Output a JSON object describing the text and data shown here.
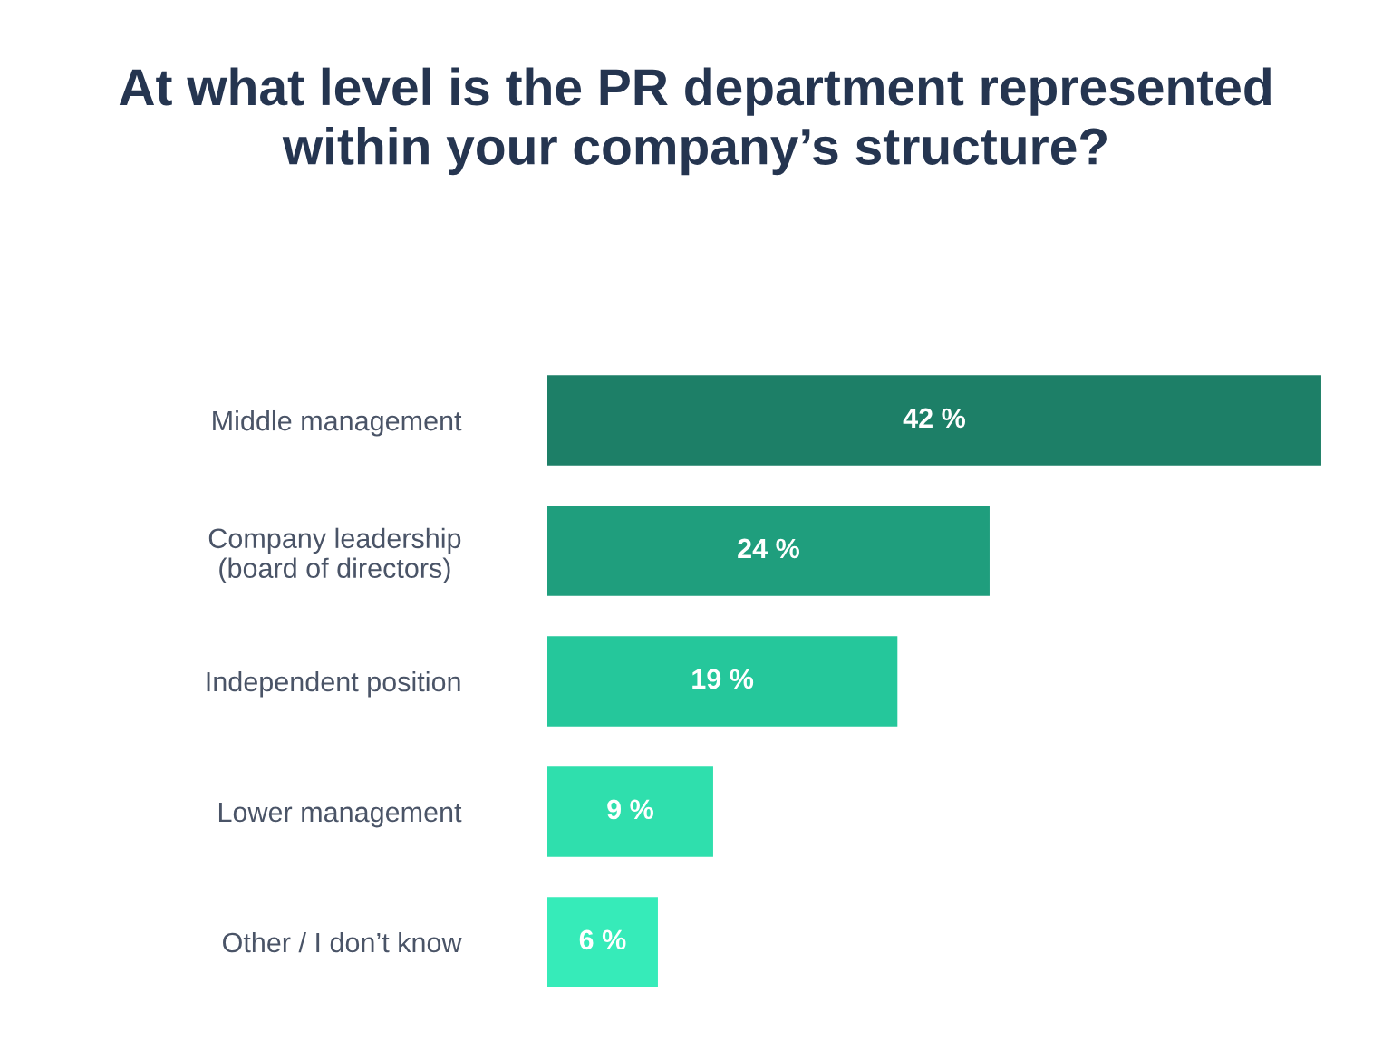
{
  "chart_data": {
    "type": "bar",
    "orientation": "horizontal",
    "title": "At what level is the PR department represented\nwithin your company’s structure?",
    "categories": [
      "Middle management",
      "Company leadership\n(board of directors)",
      "Independent position",
      "Lower management",
      "Other / I don’t know"
    ],
    "values": [
      42,
      24,
      19,
      9,
      6
    ],
    "value_labels": [
      "42 %",
      "24 %",
      "19 %",
      "9 %",
      "6 %"
    ],
    "colors": [
      "#1d7f67",
      "#1f9e7d",
      "#25c79b",
      "#2fdfad",
      "#36ebb9"
    ],
    "tick_labels": "y",
    "grid": false,
    "legend": false
  }
}
